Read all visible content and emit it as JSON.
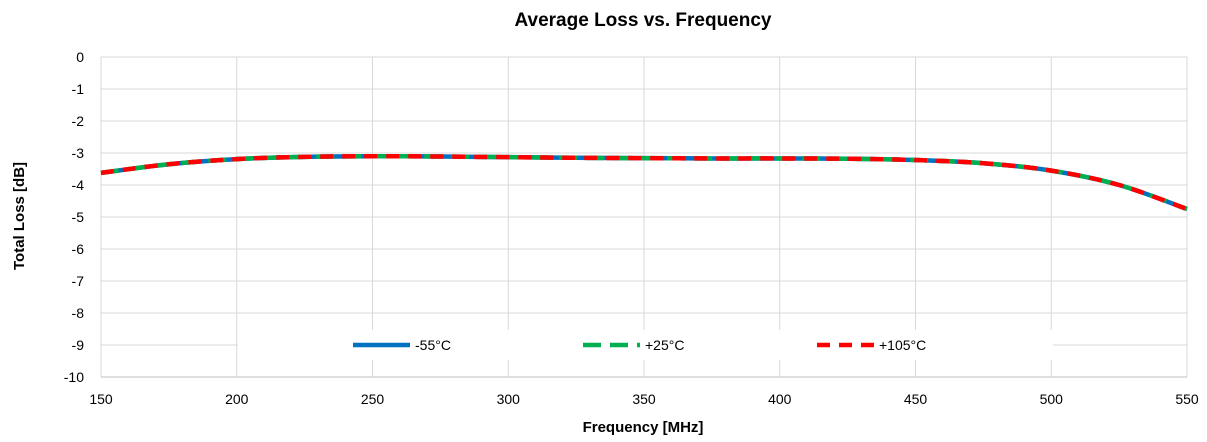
{
  "chart_data": {
    "type": "line",
    "title": "Average Loss vs. Frequency",
    "xlabel": "Frequency [MHz]",
    "ylabel": "Total Loss [dB]",
    "xlim": [
      150,
      550
    ],
    "ylim": [
      -10,
      0
    ],
    "x_ticks": [
      "150",
      "200",
      "250",
      "300",
      "350",
      "400",
      "450",
      "500",
      "550"
    ],
    "y_ticks": [
      "0",
      "-1",
      "-2",
      "-3",
      "-4",
      "-5",
      "-6",
      "-7",
      "-8",
      "-9",
      "-10"
    ],
    "grid": true,
    "legend_position": "bottom-center",
    "x": [
      150,
      175,
      200,
      225,
      250,
      275,
      300,
      325,
      350,
      375,
      400,
      425,
      450,
      475,
      500,
      525,
      550
    ],
    "series": [
      {
        "name": "-55°C",
        "color": "#0070C0",
        "dash": "solid",
        "values": [
          -3.62,
          -3.35,
          -3.19,
          -3.12,
          -3.1,
          -3.11,
          -3.13,
          -3.15,
          -3.16,
          -3.17,
          -3.17,
          -3.18,
          -3.22,
          -3.32,
          -3.55,
          -4.0,
          -4.75
        ]
      },
      {
        "name": "+25°C",
        "color": "#00B050",
        "dash": "long-dash",
        "values": [
          -3.62,
          -3.35,
          -3.19,
          -3.12,
          -3.1,
          -3.11,
          -3.13,
          -3.15,
          -3.16,
          -3.17,
          -3.17,
          -3.18,
          -3.22,
          -3.32,
          -3.55,
          -4.0,
          -4.75
        ]
      },
      {
        "name": "+105°C",
        "color": "#FF0000",
        "dash": "dash",
        "values": [
          -3.62,
          -3.35,
          -3.19,
          -3.12,
          -3.1,
          -3.11,
          -3.13,
          -3.15,
          -3.16,
          -3.17,
          -3.17,
          -3.18,
          -3.22,
          -3.32,
          -3.55,
          -4.0,
          -4.75
        ]
      }
    ]
  }
}
